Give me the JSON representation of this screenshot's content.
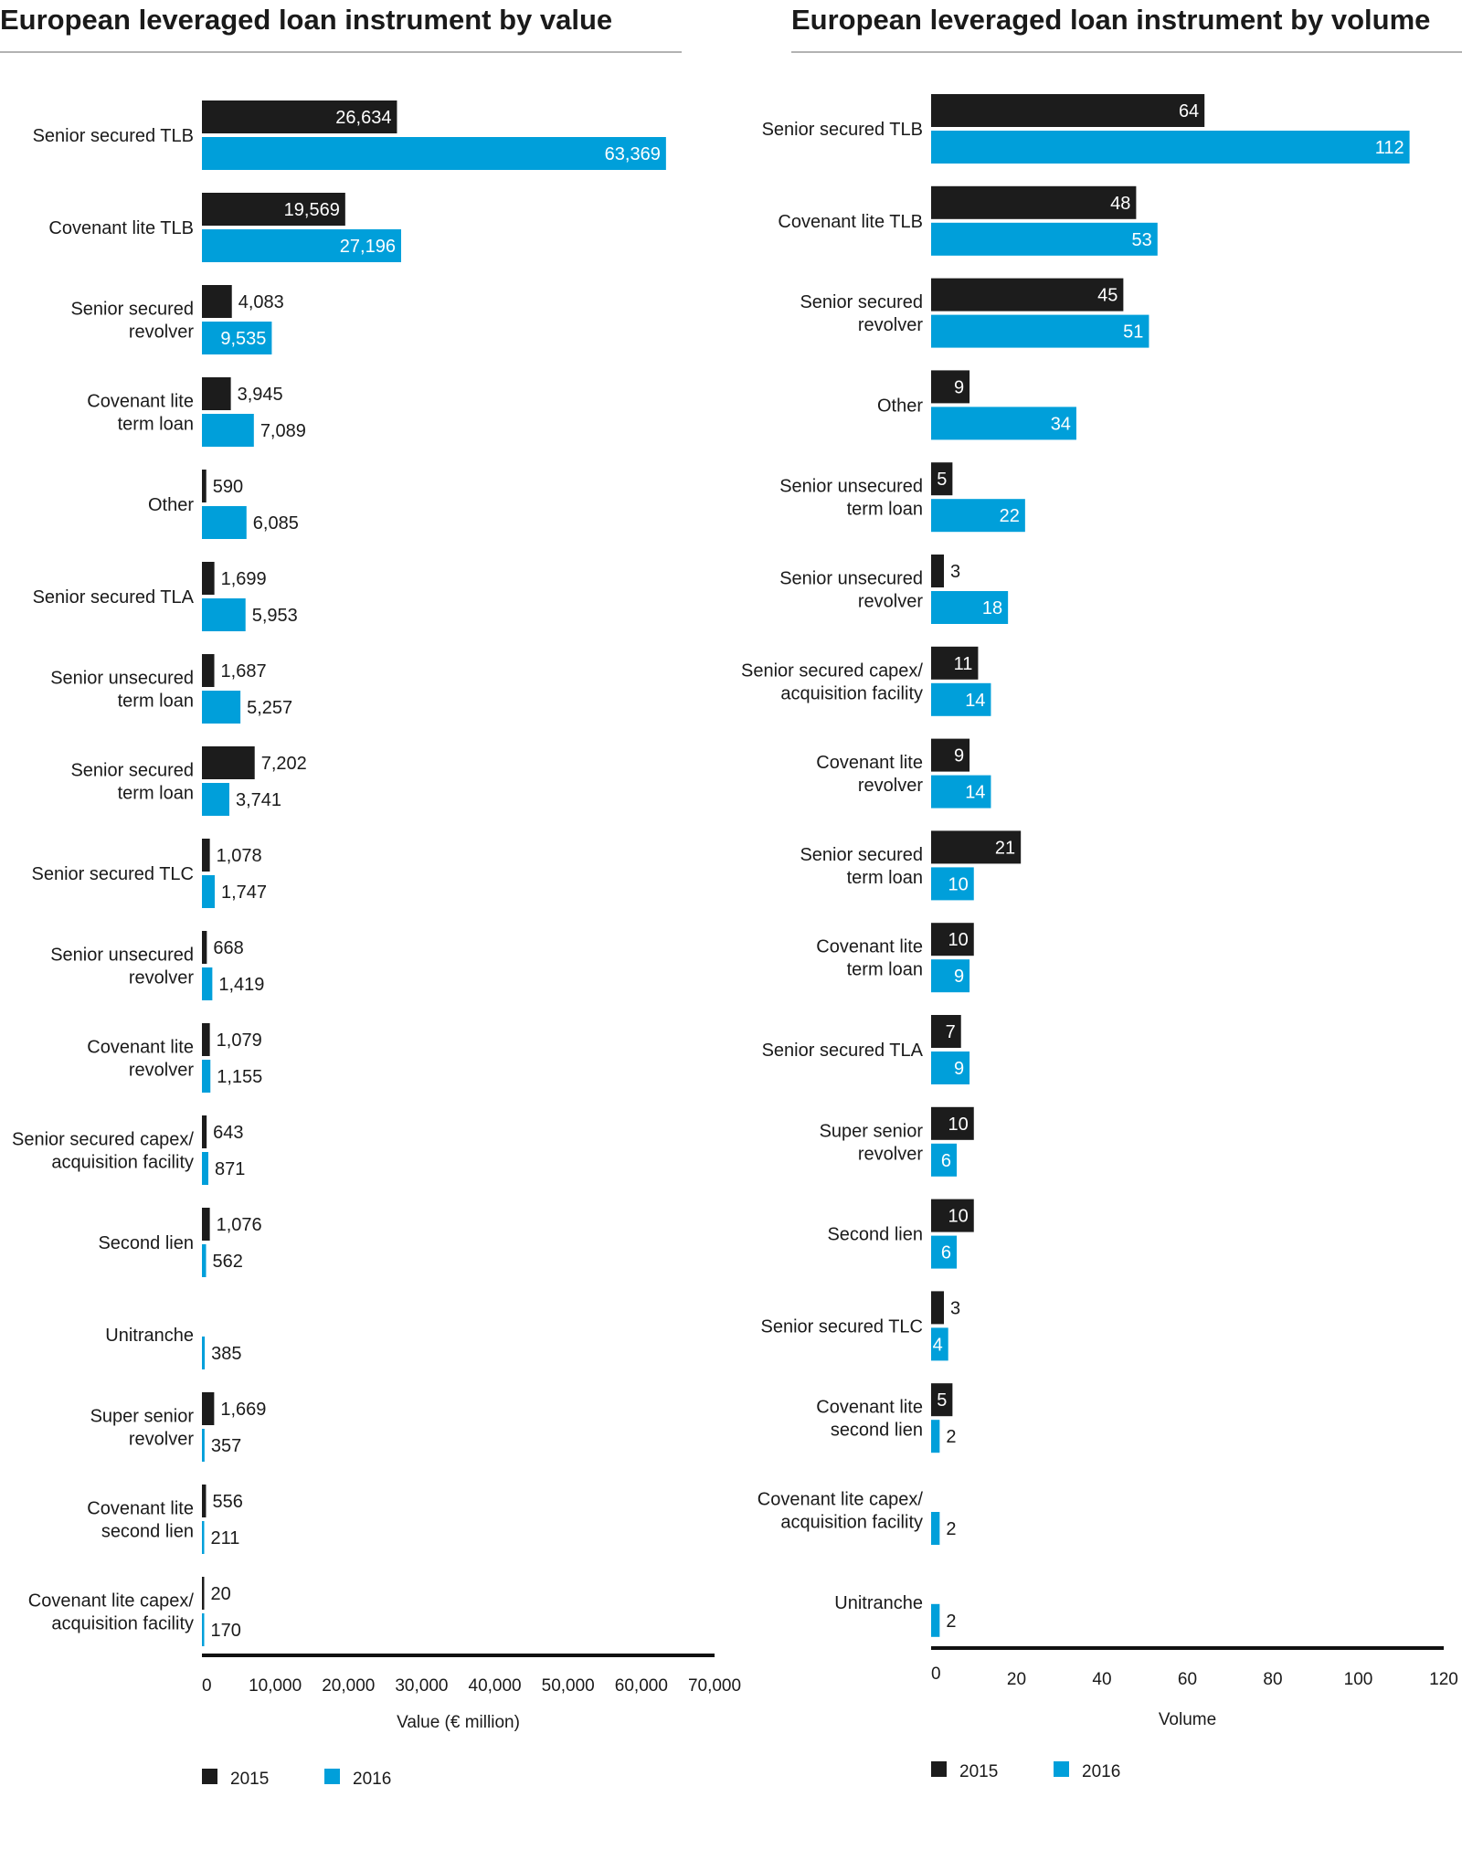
{
  "colors": {
    "y2015": "#1c1c1c",
    "y2016": "#009fda"
  },
  "chart_data": [
    {
      "type": "bar",
      "orientation": "horizontal",
      "title": "European leveraged loan instrument by value",
      "xlabel": "Value (€ million)",
      "xlim": [
        0,
        70000
      ],
      "ticks": [
        "0",
        "10,000",
        "20,000",
        "30,000",
        "40,000",
        "50,000",
        "60,000",
        "70,000"
      ],
      "tick_values": [
        0,
        10000,
        20000,
        30000,
        40000,
        50000,
        60000,
        70000
      ],
      "legend": [
        "2015",
        "2016"
      ],
      "legend_position": "bottom-left",
      "categories": [
        [
          "Senior secured TLB"
        ],
        [
          "Covenant lite TLB"
        ],
        [
          "Senior secured",
          "revolver"
        ],
        [
          "Covenant lite",
          "term loan"
        ],
        [
          "Other"
        ],
        [
          "Senior secured TLA"
        ],
        [
          "Senior unsecured",
          "term loan"
        ],
        [
          "Senior secured",
          "term loan"
        ],
        [
          "Senior secured TLC"
        ],
        [
          "Senior unsecured",
          "revolver"
        ],
        [
          "Covenant lite",
          "revolver"
        ],
        [
          "Senior secured capex/",
          "acquisition facility"
        ],
        [
          "Second lien"
        ],
        [
          "Unitranche"
        ],
        [
          "Super senior",
          "revolver"
        ],
        [
          "Covenant lite",
          "second lien"
        ],
        [
          "Covenant lite capex/",
          "acquisition facility"
        ]
      ],
      "series": [
        {
          "name": "2015",
          "values": [
            26634,
            19569,
            4083,
            3945,
            590,
            1699,
            1687,
            7202,
            1078,
            668,
            1079,
            643,
            1076,
            null,
            1669,
            556,
            20
          ],
          "labels": [
            "26,634",
            "19,569",
            "4,083",
            "3,945",
            "590",
            "1,699",
            "1,687",
            "7,202",
            "1,078",
            "668",
            "1,079",
            "643",
            "1,076",
            null,
            "1,669",
            "556",
            "20"
          ]
        },
        {
          "name": "2016",
          "values": [
            63369,
            27196,
            9535,
            7089,
            6085,
            5953,
            5257,
            3741,
            1747,
            1419,
            1155,
            871,
            562,
            385,
            357,
            211,
            170
          ],
          "labels": [
            "63,369",
            "27,196",
            "9,535",
            "7,089",
            "6,085",
            "5,953",
            "5,257",
            "3,741",
            "1,747",
            "1,419",
            "1,155",
            "871",
            "562",
            "385",
            "357",
            "211",
            "170"
          ]
        }
      ]
    },
    {
      "type": "bar",
      "orientation": "horizontal",
      "title": "European leveraged loan instrument by volume",
      "xlabel": "Volume",
      "xlim": [
        0,
        120
      ],
      "ticks": [
        "0",
        "20",
        "40",
        "60",
        "80",
        "100",
        "120"
      ],
      "tick_values": [
        0,
        20,
        40,
        60,
        80,
        100,
        120
      ],
      "legend": [
        "2015",
        "2016"
      ],
      "legend_position": "bottom-left",
      "categories": [
        [
          "Senior secured TLB"
        ],
        [
          "Covenant lite TLB"
        ],
        [
          "Senior secured",
          "revolver"
        ],
        [
          "Other"
        ],
        [
          "Senior unsecured",
          "term loan"
        ],
        [
          "Senior unsecured",
          "revolver"
        ],
        [
          "Senior secured capex/",
          "acquisition facility"
        ],
        [
          "Covenant lite",
          "revolver"
        ],
        [
          "Senior secured",
          "term loan"
        ],
        [
          "Covenant lite",
          "term loan"
        ],
        [
          "Senior secured TLA"
        ],
        [
          "Super senior",
          "revolver"
        ],
        [
          "Second lien"
        ],
        [
          "Senior secured TLC"
        ],
        [
          "Covenant lite",
          "second lien"
        ],
        [
          "Covenant lite capex/",
          "acquisition facility"
        ],
        [
          "Unitranche"
        ]
      ],
      "series": [
        {
          "name": "2015",
          "values": [
            64,
            48,
            45,
            9,
            5,
            3,
            11,
            9,
            21,
            10,
            7,
            10,
            10,
            3,
            5,
            null,
            null
          ],
          "labels": [
            "64",
            "48",
            "45",
            "9",
            "5",
            "3",
            "11",
            "9",
            "21",
            "10",
            "7",
            "10",
            "10",
            "3",
            "5",
            null,
            null
          ]
        },
        {
          "name": "2016",
          "values": [
            112,
            53,
            51,
            34,
            22,
            18,
            14,
            14,
            10,
            9,
            9,
            6,
            6,
            4,
            2,
            2,
            2
          ],
          "labels": [
            "112",
            "53",
            "51",
            "34",
            "22",
            "18",
            "14",
            "14",
            "10",
            "9",
            "9",
            "6",
            "6",
            "4",
            "2",
            "2",
            "2"
          ]
        }
      ]
    }
  ]
}
